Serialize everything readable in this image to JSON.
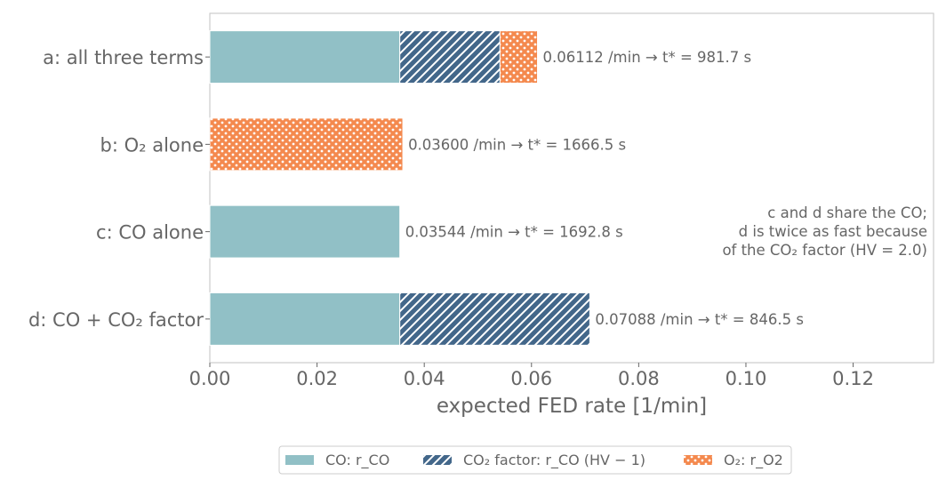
{
  "chart_data": {
    "type": "bar",
    "orientation": "horizontal",
    "stacked": true,
    "title": "",
    "xlabel": "expected FED rate [1/min]",
    "ylabel": "",
    "xlim": [
      0,
      0.135
    ],
    "x_ticks": [
      0.0,
      0.02,
      0.04,
      0.06,
      0.08,
      0.1,
      0.12
    ],
    "x_tick_labels": [
      "0.00",
      "0.02",
      "0.04",
      "0.06",
      "0.08",
      "0.10",
      "0.12"
    ],
    "grid": false,
    "legend_position": "bottom-center",
    "categories": [
      "a: all three terms",
      "b: O₂ alone",
      "c: CO alone",
      "d: CO + CO₂ factor"
    ],
    "series": [
      {
        "name": "CO: r_CO",
        "color": "#91c0c6",
        "pattern": "solid",
        "values": [
          0.03544,
          0,
          0.03544,
          0.03544
        ]
      },
      {
        "name": "CO₂ factor: r_CO (HV − 1)",
        "color": "#43678a",
        "pattern": "hatch",
        "values": [
          0.01868,
          0,
          0,
          0.03544
        ]
      },
      {
        "name": "O₂: r_O2",
        "color": "#f4894e",
        "pattern": "dots",
        "values": [
          0.007,
          0.036,
          0,
          0
        ]
      }
    ],
    "totals": [
      0.06112,
      0.036,
      0.03544,
      0.07088
    ],
    "bar_labels": [
      "0.06112 /min → t* = 981.7 s",
      "0.03600 /min → t* = 1666.5 s",
      "0.03544 /min → t* = 1692.8 s",
      "0.07088 /min → t* = 846.5 s"
    ],
    "annotation": [
      "c and d share the CO;",
      "d is twice as fast because",
      "of the CO₂ factor (HV = 2.0)"
    ]
  }
}
